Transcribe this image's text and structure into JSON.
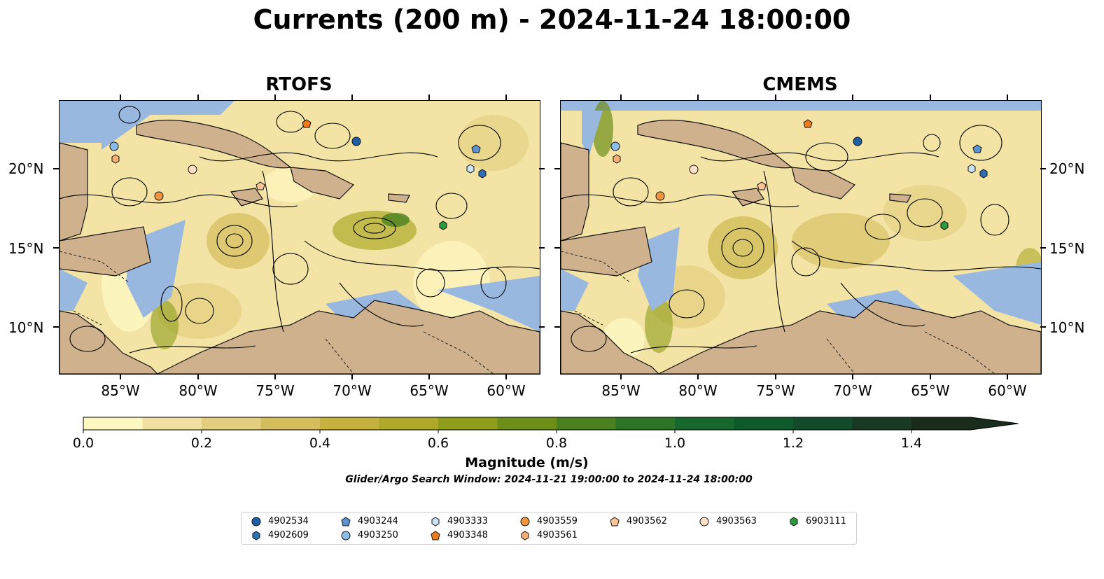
{
  "title": "Currents (200 m) - 2024-11-24 18:00:00",
  "panels": [
    {
      "title": "RTOFS"
    },
    {
      "title": "CMEMS"
    }
  ],
  "axes": {
    "lon_ticks": [
      "85°W",
      "80°W",
      "75°W",
      "70°W",
      "65°W",
      "60°W"
    ],
    "lat_ticks": [
      "20°N",
      "15°N",
      "10°N"
    ]
  },
  "colorbar": {
    "label": "Magnitude (m/s)",
    "ticks": [
      "0.0",
      "0.2",
      "0.4",
      "0.6",
      "0.8",
      "1.0",
      "1.2",
      "1.4"
    ],
    "colors": [
      "#fdf7c2",
      "#efe0a0",
      "#e2ce7e",
      "#d4bd5c",
      "#c4b13e",
      "#aea92a",
      "#8f9e1a",
      "#6d8f18",
      "#4a8120",
      "#2c7426",
      "#17682c",
      "#0e5a2d",
      "#124a2a",
      "#183a24",
      "#1a2c1c"
    ]
  },
  "search_window": "Glider/Argo Search Window: 2024-11-21 19:00:00 to 2024-11-24 18:00:00",
  "colors": {
    "land": "#cfb28d",
    "water": "#99b8e0"
  },
  "legend": [
    {
      "id": "4902534",
      "marker": "circle",
      "color": "#1f5fa6"
    },
    {
      "id": "4902609",
      "marker": "hexagon",
      "color": "#2f6fb4"
    },
    {
      "id": "4903244",
      "marker": "pentagon",
      "color": "#5a93cf"
    },
    {
      "id": "4903250",
      "marker": "circle",
      "color": "#8cbde8"
    },
    {
      "id": "4903333",
      "marker": "hexagon",
      "color": "#c8e2f8"
    },
    {
      "id": "4903348",
      "marker": "pentagon",
      "color": "#f07b17"
    },
    {
      "id": "4903559",
      "marker": "circle",
      "color": "#f2963f"
    },
    {
      "id": "4903561",
      "marker": "hexagon",
      "color": "#f8b072"
    },
    {
      "id": "4903562",
      "marker": "pentagon",
      "color": "#fbc596"
    },
    {
      "id": "4903563",
      "marker": "circle",
      "color": "#fde0c6"
    },
    {
      "id": "6903111",
      "marker": "hexagon",
      "color": "#2d9a3e"
    }
  ]
}
